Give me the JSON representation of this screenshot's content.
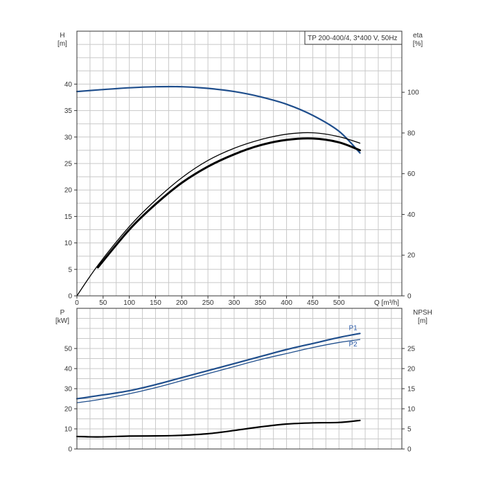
{
  "chart_data": [
    {
      "type": "line",
      "legend": "TP 200-400/4, 3*400 V, 50Hz",
      "left_axis": {
        "name": "H",
        "unit": "[m]",
        "ylim": [
          0,
          50
        ],
        "ticks": [
          0,
          5,
          10,
          15,
          20,
          25,
          30,
          35,
          40
        ]
      },
      "right_axis": {
        "name": "eta",
        "unit": "[%]",
        "ylim": [
          0,
          130
        ],
        "ticks": [
          0,
          20,
          40,
          60,
          80,
          100
        ]
      },
      "x_axis": {
        "label": "Q [m³/h]",
        "xlim": [
          0,
          620
        ],
        "ticks": [
          0,
          50,
          100,
          150,
          200,
          250,
          300,
          350,
          400,
          450,
          500
        ]
      },
      "grid": true,
      "series": [
        {
          "axis": "left",
          "color": "#1f4e8c",
          "width": 2.2,
          "points": [
            [
              0,
              38.6
            ],
            [
              40,
              38.9
            ],
            [
              100,
              39.3
            ],
            [
              150,
              39.5
            ],
            [
              200,
              39.5
            ],
            [
              250,
              39.2
            ],
            [
              300,
              38.6
            ],
            [
              350,
              37.6
            ],
            [
              400,
              36.2
            ],
            [
              450,
              34.1
            ],
            [
              500,
              31.1
            ],
            [
              540,
              27.0
            ]
          ]
        },
        {
          "axis": "right",
          "color": "#000000",
          "width": 1.3,
          "points": [
            [
              0,
              0
            ],
            [
              40,
              15
            ],
            [
              100,
              34
            ],
            [
              150,
              47
            ],
            [
              200,
              58
            ],
            [
              250,
              66.5
            ],
            [
              300,
              72.5
            ],
            [
              350,
              76.7
            ],
            [
              400,
              79.4
            ],
            [
              450,
              80.1
            ],
            [
              500,
              78.2
            ],
            [
              540,
              75.0
            ]
          ]
        },
        {
          "axis": "right",
          "color": "#000000",
          "width": 3,
          "points": [
            [
              40,
              14
            ],
            [
              100,
              32.5
            ],
            [
              150,
              45
            ],
            [
              200,
              55.5
            ],
            [
              250,
              63.5
            ],
            [
              300,
              69.5
            ],
            [
              350,
              74
            ],
            [
              400,
              76.6
            ],
            [
              450,
              77.3
            ],
            [
              500,
              75.4
            ],
            [
              540,
              71.5
            ]
          ]
        }
      ]
    },
    {
      "type": "line",
      "left_axis": {
        "name": "P",
        "unit": "[kW]",
        "ylim": [
          0,
          70
        ],
        "ticks": [
          0,
          10,
          20,
          30,
          40,
          50
        ]
      },
      "right_axis": {
        "name": "NPSH",
        "unit": "[m]",
        "ylim": [
          0,
          35
        ],
        "ticks": [
          0,
          5,
          10,
          15,
          20,
          25
        ]
      },
      "x_axis": {
        "xlim": [
          0,
          620
        ]
      },
      "grid": true,
      "series": [
        {
          "name": "P1",
          "axis": "left",
          "color": "#1f4e8c",
          "width": 2.2,
          "points": [
            [
              0,
              25
            ],
            [
              40,
              26.5
            ],
            [
              100,
              29
            ],
            [
              150,
              32
            ],
            [
              200,
              35.5
            ],
            [
              250,
              39
            ],
            [
              300,
              42.5
            ],
            [
              350,
              46
            ],
            [
              400,
              49.5
            ],
            [
              450,
              52.5
            ],
            [
              500,
              55.5
            ],
            [
              540,
              57.5
            ]
          ]
        },
        {
          "name": "P2",
          "axis": "left",
          "color": "#1f4e8c",
          "width": 1.3,
          "points": [
            [
              0,
              23
            ],
            [
              40,
              24.5
            ],
            [
              100,
              27.5
            ],
            [
              150,
              30.5
            ],
            [
              200,
              34
            ],
            [
              250,
              37.5
            ],
            [
              300,
              41
            ],
            [
              350,
              44.5
            ],
            [
              400,
              47.5
            ],
            [
              450,
              50.5
            ],
            [
              500,
              53
            ],
            [
              540,
              54.5
            ]
          ]
        },
        {
          "axis": "right",
          "color": "#000000",
          "width": 2.2,
          "points": [
            [
              0,
              3.1
            ],
            [
              40,
              3.0
            ],
            [
              100,
              3.2
            ],
            [
              150,
              3.25
            ],
            [
              200,
              3.4
            ],
            [
              250,
              3.8
            ],
            [
              300,
              4.6
            ],
            [
              350,
              5.5
            ],
            [
              400,
              6.2
            ],
            [
              450,
              6.5
            ],
            [
              500,
              6.6
            ],
            [
              540,
              7.1
            ]
          ]
        }
      ]
    }
  ]
}
